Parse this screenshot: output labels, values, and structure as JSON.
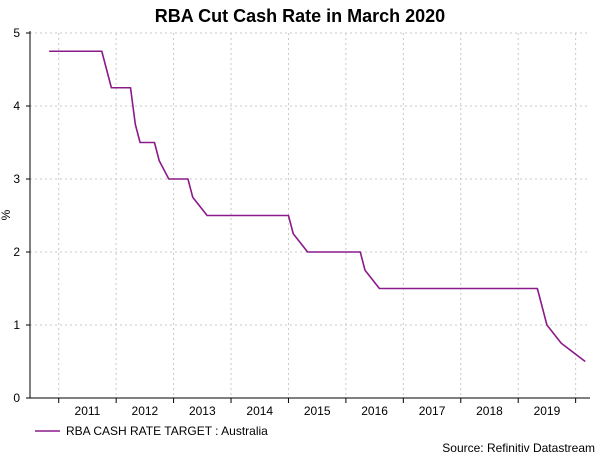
{
  "chart_data": {
    "type": "line",
    "title": "RBA Cut Cash Rate in March 2020",
    "xlabel": "",
    "ylabel": "%",
    "xlim": [
      2010.5,
      2020.25
    ],
    "ylim": [
      0,
      5
    ],
    "x_ticks": [
      {
        "label": "2011",
        "value": 2011.0
      },
      {
        "label": "2012",
        "value": 2012.0
      },
      {
        "label": "2013",
        "value": 2013.0
      },
      {
        "label": "2014",
        "value": 2014.0
      },
      {
        "label": "2015",
        "value": 2015.0
      },
      {
        "label": "2016",
        "value": 2016.0
      },
      {
        "label": "2017",
        "value": 2017.0
      },
      {
        "label": "2018",
        "value": 2018.0
      },
      {
        "label": "2019",
        "value": 2019.0
      }
    ],
    "y_ticks": [
      "0",
      "1",
      "2",
      "3",
      "4",
      "5"
    ],
    "grid": true,
    "legend_position": "bottom-left",
    "source": "Source: Refinitiv Datastream",
    "series": [
      {
        "name": "RBA CASH RATE TARGET : Australia",
        "color": "#8b1a8b",
        "points": [
          {
            "x": "2010-11",
            "y": 4.75
          },
          {
            "x": "2011-10",
            "y": 4.75
          },
          {
            "x": "2011-11",
            "y": 4.5
          },
          {
            "x": "2011-12",
            "y": 4.25
          },
          {
            "x": "2012-04",
            "y": 4.25
          },
          {
            "x": "2012-05",
            "y": 3.75
          },
          {
            "x": "2012-06",
            "y": 3.5
          },
          {
            "x": "2012-09",
            "y": 3.5
          },
          {
            "x": "2012-10",
            "y": 3.25
          },
          {
            "x": "2012-12",
            "y": 3.0
          },
          {
            "x": "2013-04",
            "y": 3.0
          },
          {
            "x": "2013-05",
            "y": 2.75
          },
          {
            "x": "2013-08",
            "y": 2.5
          },
          {
            "x": "2015-01",
            "y": 2.5
          },
          {
            "x": "2015-02",
            "y": 2.25
          },
          {
            "x": "2015-05",
            "y": 2.0
          },
          {
            "x": "2016-04",
            "y": 2.0
          },
          {
            "x": "2016-05",
            "y": 1.75
          },
          {
            "x": "2016-08",
            "y": 1.5
          },
          {
            "x": "2019-05",
            "y": 1.5
          },
          {
            "x": "2019-06",
            "y": 1.25
          },
          {
            "x": "2019-07",
            "y": 1.0
          },
          {
            "x": "2019-10",
            "y": 0.75
          },
          {
            "x": "2020-03",
            "y": 0.5
          }
        ]
      }
    ]
  }
}
